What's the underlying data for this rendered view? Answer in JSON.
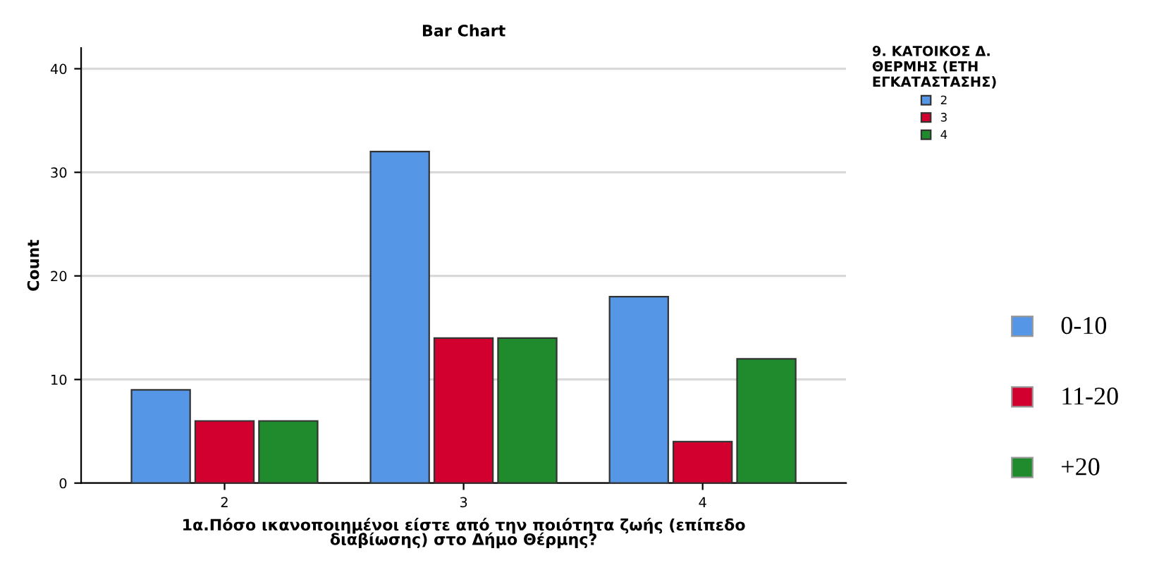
{
  "chart_data": {
    "type": "bar",
    "title": "Bar Chart",
    "xlabel": "1α.Πόσο ικανοποιημένοι είστε από την ποιότητα ζωής (επίπεδο\nδιαβίωσης) στο Δήμο Θέρμης?",
    "ylabel": "Count",
    "legend_title": "9. ΚΑΤΟΙΚΟΣ Δ.\nΘΕΡΜΗΣ (ΕΤΗ\nΕΓΚΑΤΑΣΤΑΣΗΣ)",
    "categories": [
      "2",
      "3",
      "4"
    ],
    "series": [
      {
        "name": "2",
        "color": "#5596e6",
        "values": [
          9,
          32,
          18
        ]
      },
      {
        "name": "3",
        "color": "#d1002e",
        "values": [
          6,
          14,
          4
        ]
      },
      {
        "name": "4",
        "color": "#1f8b2c",
        "values": [
          6,
          14,
          12
        ]
      }
    ],
    "ylim": [
      0,
      42
    ],
    "yticks": [
      0,
      10,
      20,
      30,
      40
    ],
    "grid": "y",
    "legend": "top right",
    "annotations": [
      "0-10",
      "11-20",
      "+20"
    ]
  }
}
